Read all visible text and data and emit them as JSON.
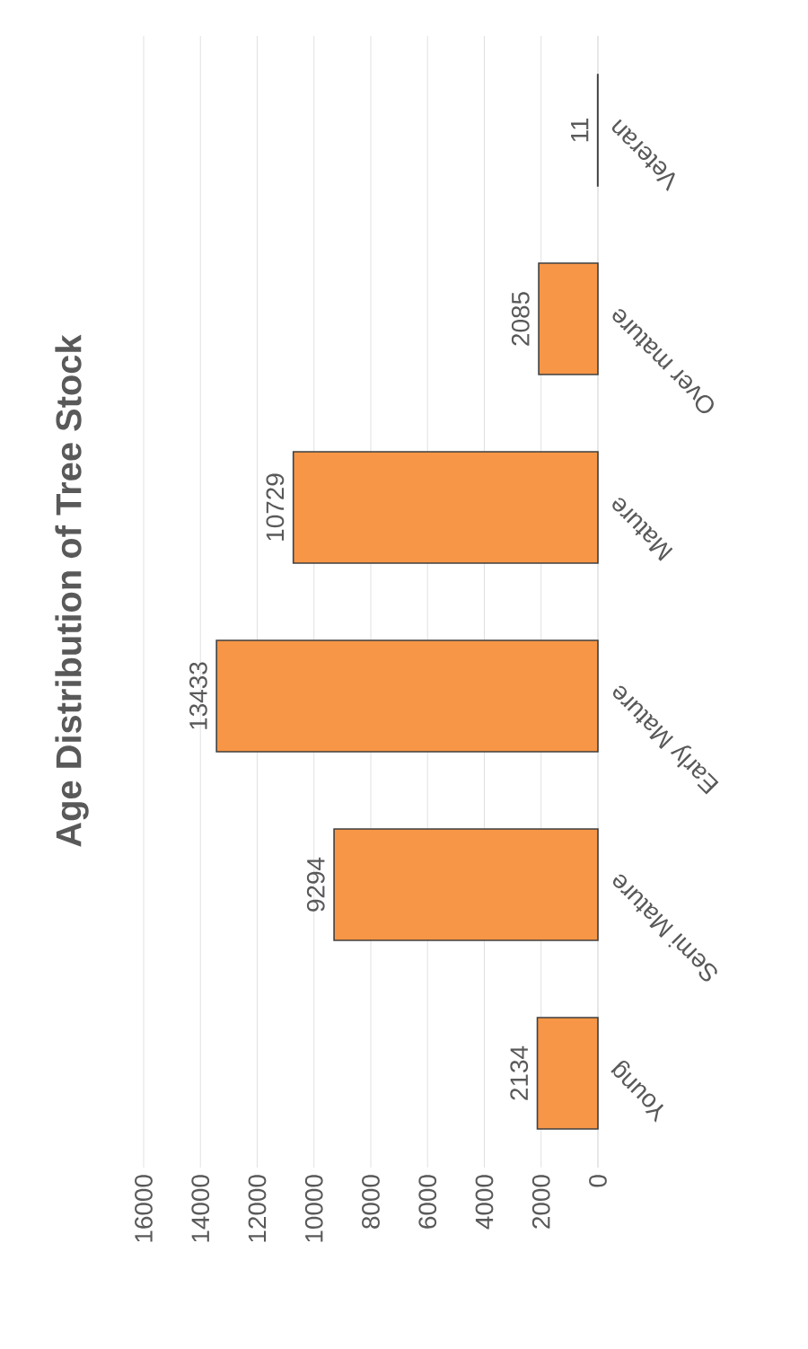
{
  "chart_data": {
    "type": "bar",
    "orientation": "horizontal",
    "title": "Age Distribution of Tree Stock",
    "categories": [
      "Veteran",
      "Over mature",
      "Mature",
      "Early Mature",
      "Semi Mature",
      "Young"
    ],
    "values": [
      11,
      2085,
      10729,
      13433,
      9294,
      2134
    ],
    "color": "#f79646",
    "xlim": [
      16000,
      0
    ],
    "xticks": [
      16000,
      14000,
      12000,
      10000,
      8000,
      6000,
      4000,
      2000,
      0
    ],
    "grid": "x",
    "data_labels": true
  }
}
